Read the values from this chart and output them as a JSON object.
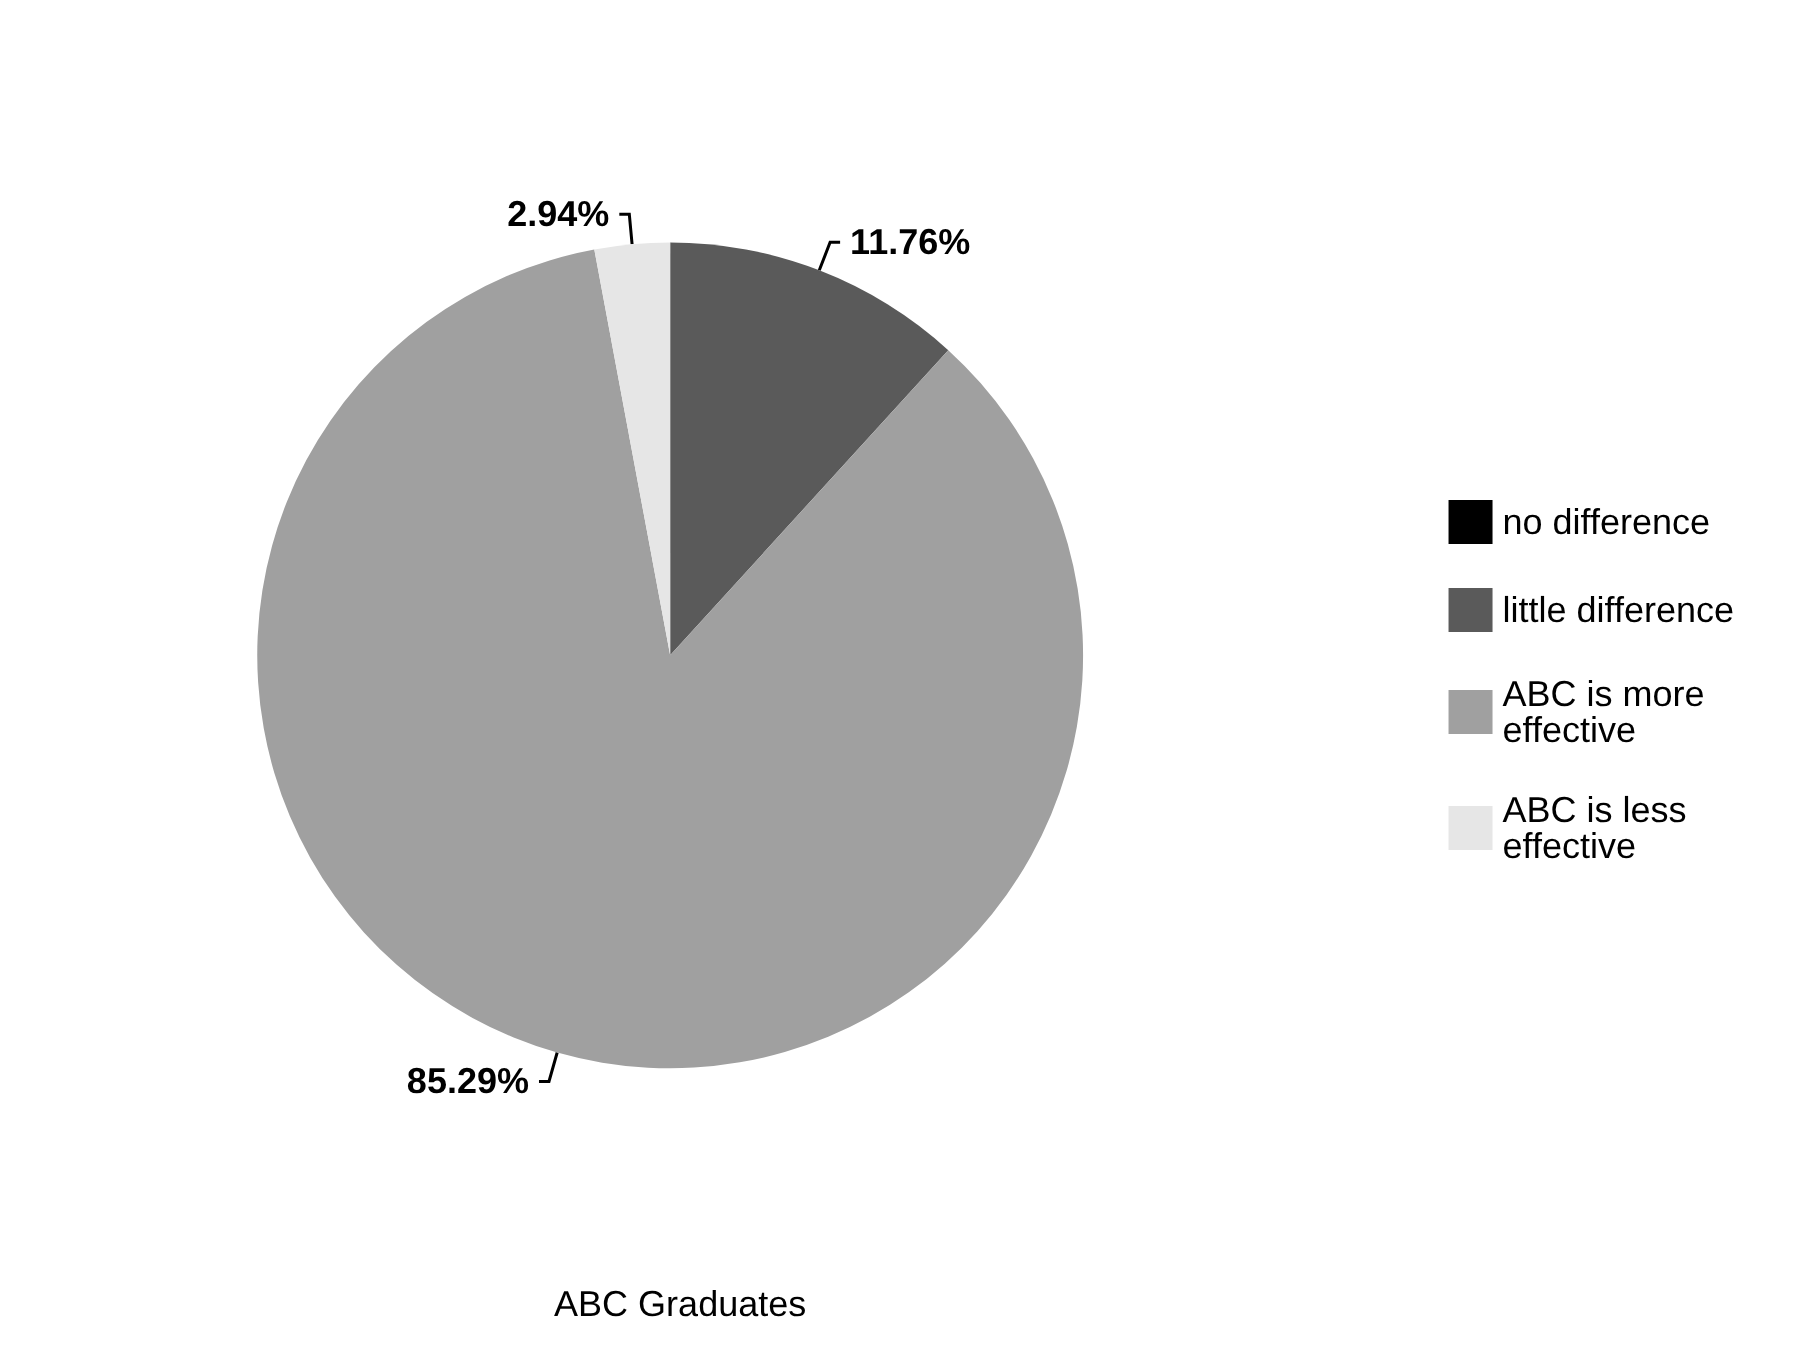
{
  "chart_data": {
    "type": "pie",
    "title": "ABC Graduates",
    "categories": [
      "no difference",
      "little difference",
      "ABC is more effective",
      "ABC is less effective"
    ],
    "values": [
      0,
      11.76,
      85.29,
      2.94
    ],
    "colors": [
      "#000000",
      "#5a5a5a",
      "#a0a0a0",
      "#e6e6e6"
    ],
    "value_labels": [
      null,
      "11.76%",
      "85.29%",
      "2.94%"
    ],
    "legend": "right"
  }
}
